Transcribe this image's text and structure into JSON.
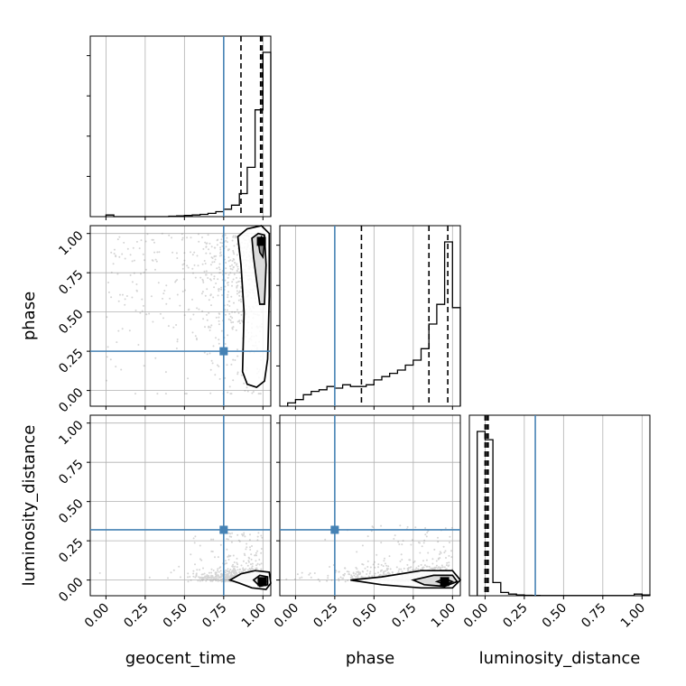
{
  "chart_data": {
    "type": "corner",
    "parameters": [
      "geocent_time",
      "phase",
      "luminosity_distance"
    ],
    "tick_labels": [
      "0.00",
      "0.25",
      "0.50",
      "0.75",
      "1.00"
    ],
    "axis_range": [
      -0.1,
      1.05
    ],
    "grid": true,
    "truths": {
      "geocent_time": 0.75,
      "phase": 0.25,
      "luminosity_distance": 0.32
    },
    "colors": {
      "truth": "#4682b4",
      "hist": "#000000",
      "grid": "#b0b0b0",
      "samples": "#888888"
    },
    "histograms": [
      {
        "parameter": "geocent_time",
        "bin_edges": [
          0.0,
          0.05,
          0.1,
          0.15,
          0.2,
          0.25,
          0.3,
          0.35,
          0.4,
          0.45,
          0.5,
          0.55,
          0.6,
          0.65,
          0.7,
          0.75,
          0.8,
          0.85,
          0.9,
          0.95,
          1.0,
          1.05
        ],
        "counts": [
          0.01,
          0.0,
          0.0,
          0.0,
          0.0,
          0.0,
          0.0,
          0.0,
          0.003,
          0.005,
          0.007,
          0.01,
          0.014,
          0.02,
          0.03,
          0.045,
          0.07,
          0.14,
          0.3,
          0.65,
          1.0
        ],
        "quantiles": [
          0.86,
          0.985,
          0.995
        ]
      },
      {
        "parameter": "phase",
        "bin_edges": [
          -0.05,
          0.0,
          0.05,
          0.1,
          0.15,
          0.2,
          0.25,
          0.3,
          0.35,
          0.4,
          0.45,
          0.5,
          0.55,
          0.6,
          0.65,
          0.7,
          0.75,
          0.8,
          0.85,
          0.9,
          0.95,
          1.0,
          1.05
        ],
        "counts": [
          0.02,
          0.04,
          0.07,
          0.09,
          0.1,
          0.12,
          0.11,
          0.13,
          0.12,
          0.12,
          0.13,
          0.16,
          0.18,
          0.2,
          0.22,
          0.25,
          0.28,
          0.35,
          0.5,
          0.62,
          1.0,
          0.6
        ],
        "quantiles": [
          0.42,
          0.85,
          0.97
        ]
      },
      {
        "parameter": "luminosity_distance",
        "bin_edges": [
          -0.05,
          0.0,
          0.05,
          0.1,
          0.15,
          0.2,
          0.25,
          0.3,
          0.35,
          0.4,
          0.45,
          0.5,
          0.55,
          0.6,
          0.65,
          0.7,
          0.75,
          0.8,
          0.85,
          0.9,
          0.95,
          1.0,
          1.05
        ],
        "counts": [
          1.0,
          0.95,
          0.08,
          0.02,
          0.01,
          0.005,
          0.003,
          0.002,
          0.001,
          0.001,
          0.001,
          0.001,
          0.001,
          0.001,
          0.001,
          0.001,
          0.001,
          0.001,
          0.001,
          0.001,
          0.01,
          0.005
        ],
        "quantiles": [
          0.0,
          0.01,
          0.02
        ]
      }
    ],
    "scatter_panels": [
      {
        "x": "geocent_time",
        "y": "phase",
        "mode": {
          "x": 0.99,
          "y": 0.95
        },
        "contour_outer": [
          [
            0.84,
            0.98
          ],
          [
            0.9,
            1.03
          ],
          [
            0.99,
            1.05
          ],
          [
            1.04,
            1.0
          ],
          [
            1.04,
            0.6
          ],
          [
            1.03,
            0.2
          ],
          [
            1.01,
            0.06
          ],
          [
            0.96,
            0.02
          ],
          [
            0.9,
            0.04
          ],
          [
            0.87,
            0.12
          ],
          [
            0.88,
            0.5
          ],
          [
            0.86,
            0.8
          ],
          [
            0.84,
            0.98
          ]
        ],
        "contour_inner": [
          [
            0.93,
            0.97
          ],
          [
            0.97,
            1.0
          ],
          [
            1.01,
            0.99
          ],
          [
            1.02,
            0.8
          ],
          [
            1.01,
            0.55
          ],
          [
            0.98,
            0.55
          ],
          [
            0.96,
            0.7
          ],
          [
            0.94,
            0.85
          ],
          [
            0.93,
            0.97
          ]
        ],
        "contour_core": [
          [
            0.97,
            0.95
          ],
          [
            0.99,
            0.98
          ],
          [
            1.01,
            0.95
          ],
          [
            1.0,
            0.85
          ],
          [
            0.98,
            0.88
          ],
          [
            0.97,
            0.95
          ]
        ]
      },
      {
        "x": "geocent_time",
        "y": "luminosity_distance",
        "mode": {
          "x": 0.995,
          "y": -0.01
        },
        "contour_outer": [
          [
            0.79,
            0.0
          ],
          [
            0.86,
            0.04
          ],
          [
            0.95,
            0.06
          ],
          [
            1.04,
            0.05
          ],
          [
            1.05,
            -0.02
          ],
          [
            1.02,
            -0.06
          ],
          [
            0.93,
            -0.05
          ],
          [
            0.85,
            -0.02
          ],
          [
            0.79,
            0.0
          ]
        ],
        "contour_inner": [
          [
            0.94,
            0.0
          ],
          [
            0.98,
            0.03
          ],
          [
            1.03,
            0.02
          ],
          [
            1.03,
            -0.03
          ],
          [
            0.98,
            -0.04
          ],
          [
            0.94,
            0.0
          ]
        ],
        "contour_core": [
          [
            0.98,
            -0.01
          ],
          [
            1.0,
            0.01
          ],
          [
            1.02,
            -0.01
          ],
          [
            1.0,
            -0.03
          ],
          [
            0.98,
            -0.01
          ]
        ]
      },
      {
        "x": "phase",
        "y": "luminosity_distance",
        "mode": {
          "x": 0.95,
          "y": -0.01
        },
        "contour_outer": [
          [
            0.35,
            0.0
          ],
          [
            0.55,
            0.02
          ],
          [
            0.8,
            0.06
          ],
          [
            1.0,
            0.06
          ],
          [
            1.05,
            0.0
          ],
          [
            1.0,
            -0.05
          ],
          [
            0.8,
            -0.05
          ],
          [
            0.55,
            -0.03
          ],
          [
            0.35,
            0.0
          ]
        ],
        "contour_inner": [
          [
            0.75,
            0.0
          ],
          [
            0.88,
            0.03
          ],
          [
            1.0,
            0.03
          ],
          [
            1.03,
            -0.01
          ],
          [
            0.95,
            -0.04
          ],
          [
            0.82,
            -0.03
          ],
          [
            0.75,
            0.0
          ]
        ],
        "contour_core": [
          [
            0.9,
            -0.01
          ],
          [
            0.95,
            0.01
          ],
          [
            1.0,
            -0.01
          ],
          [
            0.96,
            -0.03
          ],
          [
            0.9,
            -0.01
          ]
        ]
      }
    ]
  }
}
